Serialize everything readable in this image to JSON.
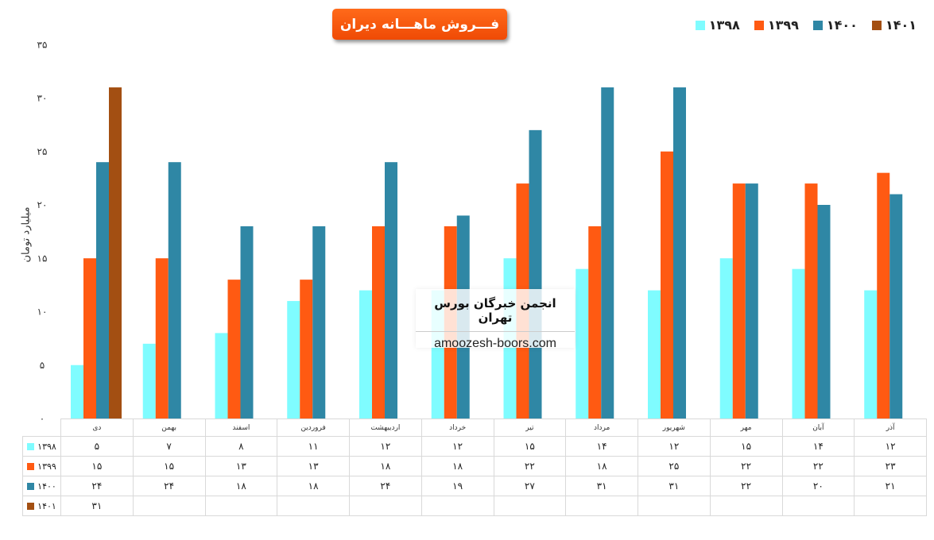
{
  "title": "فـــروش ماهـــانه دیران",
  "watermark": {
    "line1": "انجمن خبرگان بورس تهران",
    "line2": "amoozesh-boors.com"
  },
  "colors": {
    "title_bg": "#f4520b"
  },
  "chart_data": {
    "type": "bar",
    "ylabel": "میلیارد تومان",
    "ylim": [
      0,
      35
    ],
    "yticks": [
      "۰",
      "۵",
      "۱۰",
      "۱۵",
      "۲۰",
      "۲۵",
      "۳۰",
      "۳۵"
    ],
    "ytick_values": [
      0,
      5,
      10,
      15,
      20,
      25,
      30,
      35
    ],
    "categories": [
      "دی",
      "بهمن",
      "اسفند",
      "فروردین",
      "اردیبهشت",
      "خرداد",
      "تیر",
      "مرداد",
      "شهریور",
      "مهر",
      "آبان",
      "آذر"
    ],
    "series": [
      {
        "name": "۱۳۹۸",
        "color": "#7ffcff",
        "values": [
          5,
          7,
          8,
          11,
          12,
          12,
          15,
          14,
          12,
          15,
          14,
          12
        ],
        "labels": [
          "۵",
          "۷",
          "۸",
          "۱۱",
          "۱۲",
          "۱۲",
          "۱۵",
          "۱۴",
          "۱۲",
          "۱۵",
          "۱۴",
          "۱۲"
        ]
      },
      {
        "name": "۱۳۹۹",
        "color": "#ff5a12",
        "values": [
          15,
          15,
          13,
          13,
          18,
          18,
          22,
          18,
          25,
          22,
          22,
          23
        ],
        "labels": [
          "۱۵",
          "۱۵",
          "۱۳",
          "۱۳",
          "۱۸",
          "۱۸",
          "۲۲",
          "۱۸",
          "۲۵",
          "۲۲",
          "۲۲",
          "۲۳"
        ]
      },
      {
        "name": "۱۴۰۰",
        "color": "#2f87a5",
        "values": [
          24,
          24,
          18,
          18,
          24,
          19,
          27,
          31,
          31,
          22,
          20,
          21
        ],
        "labels": [
          "۲۴",
          "۲۴",
          "۱۸",
          "۱۸",
          "۲۴",
          "۱۹",
          "۲۷",
          "۳۱",
          "۳۱",
          "۲۲",
          "۲۰",
          "۲۱"
        ]
      },
      {
        "name": "۱۴۰۱",
        "color": "#a34f12",
        "values": [
          31,
          null,
          null,
          null,
          null,
          null,
          null,
          null,
          null,
          null,
          null,
          null
        ],
        "labels": [
          "۳۱",
          "",
          "",
          "",
          "",
          "",
          "",
          "",
          "",
          "",
          "",
          ""
        ]
      }
    ],
    "legend_position": "top-right",
    "grid": false
  }
}
